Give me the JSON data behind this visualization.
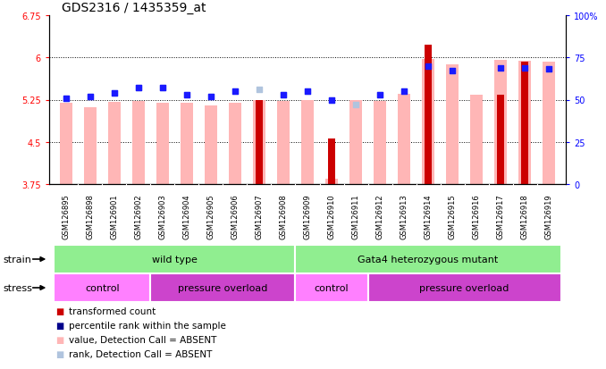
{
  "title": "GDS2316 / 1435359_at",
  "samples": [
    "GSM126895",
    "GSM126898",
    "GSM126901",
    "GSM126902",
    "GSM126903",
    "GSM126904",
    "GSM126905",
    "GSM126906",
    "GSM126907",
    "GSM126908",
    "GSM126909",
    "GSM126910",
    "GSM126911",
    "GSM126912",
    "GSM126913",
    "GSM126914",
    "GSM126915",
    "GSM126916",
    "GSM126917",
    "GSM126918",
    "GSM126919"
  ],
  "ylim_left": [
    3.75,
    6.75
  ],
  "ylim_right": [
    0,
    100
  ],
  "yticks_left": [
    3.75,
    4.5,
    5.25,
    6.0,
    6.75
  ],
  "yticks_right": [
    0,
    25,
    50,
    75,
    100
  ],
  "ytick_labels_left": [
    "3.75",
    "4.5",
    "5.25",
    "6",
    "6.75"
  ],
  "ytick_labels_right": [
    "0",
    "25",
    "50",
    "75",
    "100%"
  ],
  "hlines": [
    4.5,
    5.25,
    6.0
  ],
  "pink_bar_values": [
    5.19,
    5.12,
    5.21,
    5.23,
    5.19,
    5.2,
    5.14,
    5.2,
    5.24,
    5.23,
    5.25,
    3.85,
    5.24,
    5.23,
    5.36,
    5.98,
    5.87,
    5.33,
    5.95,
    5.94,
    5.92
  ],
  "red_bar_values": [
    null,
    null,
    null,
    null,
    null,
    null,
    null,
    null,
    5.24,
    null,
    null,
    4.56,
    null,
    null,
    null,
    6.22,
    null,
    null,
    5.33,
    5.93,
    null
  ],
  "blue_square_values": [
    51,
    52,
    54,
    57,
    57,
    53,
    52,
    55,
    null,
    53,
    55,
    50,
    null,
    53,
    55,
    70,
    67,
    null,
    69,
    69,
    68
  ],
  "light_blue_square_values": [
    51,
    52,
    54,
    57,
    57,
    53,
    52,
    55,
    56,
    53,
    55,
    50,
    47,
    53,
    55,
    null,
    67,
    null,
    null,
    null,
    68
  ],
  "strain_groups": [
    {
      "label": "wild type",
      "start": 0,
      "end": 10,
      "color": "#90ee90"
    },
    {
      "label": "Gata4 heterozygous mutant",
      "start": 10,
      "end": 21,
      "color": "#90ee90"
    }
  ],
  "stress_groups": [
    {
      "label": "control",
      "start": 0,
      "end": 4,
      "color": "#ff80ff"
    },
    {
      "label": "pressure overload",
      "start": 4,
      "end": 10,
      "color": "#cc44cc"
    },
    {
      "label": "control",
      "start": 10,
      "end": 13,
      "color": "#ff80ff"
    },
    {
      "label": "pressure overload",
      "start": 13,
      "end": 21,
      "color": "#cc44cc"
    }
  ],
  "legend_items": [
    {
      "color": "#cc0000",
      "label": "transformed count"
    },
    {
      "color": "#00008b",
      "label": "percentile rank within the sample"
    },
    {
      "color": "#ffb6b6",
      "label": "value, Detection Call = ABSENT"
    },
    {
      "color": "#b0c4de",
      "label": "rank, Detection Call = ABSENT"
    }
  ],
  "pink_bar_width": 0.5,
  "red_bar_width": 0.28,
  "blue_square_size": 20,
  "title_fontsize": 10,
  "tick_fontsize": 7,
  "xtick_fontsize": 6,
  "legend_fontsize": 7.5,
  "row_label_fontsize": 8,
  "row_content_fontsize": 8
}
